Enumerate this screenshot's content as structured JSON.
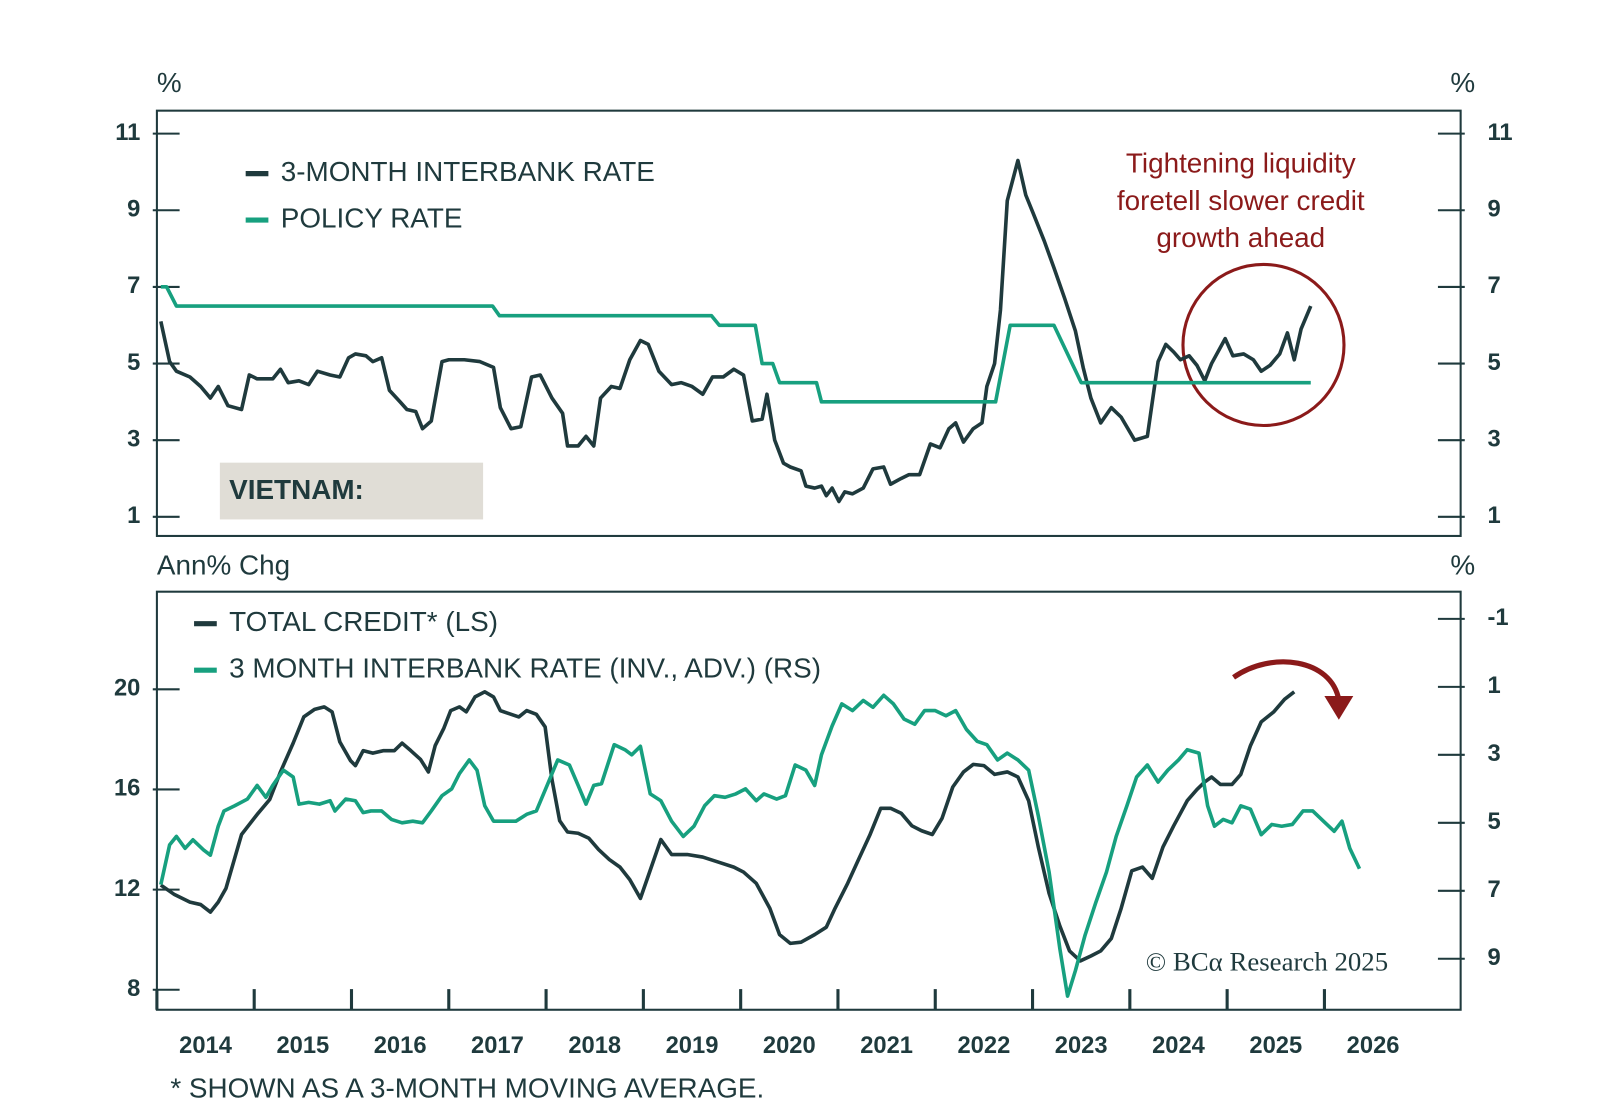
{
  "chart_data": [
    {
      "type": "line",
      "y_label": "%",
      "y2_label": "%",
      "y_mirror": true,
      "panel_label": "VIETNAM:",
      "annotation": [
        "Tightening liquidity",
        "foretell slower credit",
        "growth ahead"
      ],
      "xlim": [
        2014,
        2027.4
      ],
      "ylim": [
        0.5,
        11.6
      ],
      "yticks": [
        1,
        3,
        5,
        7,
        9,
        11
      ],
      "series": [
        {
          "name": "3-MONTH INTERBANK RATE",
          "color": "#1f3a3d",
          "x": [
            2014.04,
            2014.13,
            2014.2,
            2014.34,
            2014.45,
            2014.55,
            2014.63,
            2014.73,
            2014.87,
            2014.95,
            2015.03,
            2015.19,
            2015.27,
            2015.35,
            2015.46,
            2015.56,
            2015.65,
            2015.78,
            2015.88,
            2015.97,
            2016.04,
            2016.15,
            2016.22,
            2016.31,
            2016.39,
            2016.5,
            2016.57,
            2016.66,
            2016.73,
            2016.82,
            2016.93,
            2017.0,
            2017.16,
            2017.32,
            2017.46,
            2017.53,
            2017.64,
            2017.74,
            2017.85,
            2017.94,
            2018.06,
            2018.17,
            2018.22,
            2018.33,
            2018.41,
            2018.49,
            2018.56,
            2018.67,
            2018.76,
            2018.86,
            2018.97,
            2019.05,
            2019.16,
            2019.29,
            2019.39,
            2019.5,
            2019.61,
            2019.71,
            2019.82,
            2019.93,
            2020.03,
            2020.12,
            2020.22,
            2020.27,
            2020.35,
            2020.44,
            2020.51,
            2020.62,
            2020.67,
            2020.76,
            2020.83,
            2020.88,
            2020.94,
            2021.01,
            2021.07,
            2021.15,
            2021.26,
            2021.36,
            2021.47,
            2021.54,
            2021.65,
            2021.73,
            2021.84,
            2021.95,
            2022.05,
            2022.14,
            2022.21,
            2022.29,
            2022.39,
            2022.48,
            2022.53,
            2022.61,
            2022.67,
            2022.74,
            2022.85,
            2022.93,
            2023.01,
            2023.12,
            2023.22,
            2023.33,
            2023.44,
            2023.52,
            2023.6,
            2023.7,
            2023.81,
            2023.91,
            2024.05,
            2024.18,
            2024.29,
            2024.37,
            2024.45,
            2024.52,
            2024.61,
            2024.69,
            2024.77,
            2024.84,
            2024.98,
            2025.06,
            2025.17,
            2025.27,
            2025.35,
            2025.44,
            2025.54,
            2025.62,
            2025.69,
            2025.76,
            2025.86
          ],
          "values": [
            6.1,
            5.05,
            4.8,
            4.65,
            4.4,
            4.1,
            4.4,
            3.9,
            3.8,
            4.7,
            4.6,
            4.6,
            4.85,
            4.5,
            4.55,
            4.45,
            4.8,
            4.7,
            4.65,
            5.15,
            5.25,
            5.2,
            5.05,
            5.15,
            4.3,
            4.0,
            3.8,
            3.75,
            3.3,
            3.5,
            5.05,
            5.1,
            5.1,
            5.05,
            4.9,
            3.85,
            3.3,
            3.35,
            4.65,
            4.7,
            4.1,
            3.7,
            2.85,
            2.85,
            3.1,
            2.85,
            4.1,
            4.4,
            4.35,
            5.1,
            5.6,
            5.5,
            4.8,
            4.45,
            4.5,
            4.4,
            4.2,
            4.65,
            4.65,
            4.85,
            4.7,
            3.5,
            3.55,
            4.2,
            3.0,
            2.4,
            2.3,
            2.2,
            1.8,
            1.75,
            1.8,
            1.55,
            1.75,
            1.4,
            1.65,
            1.6,
            1.75,
            2.25,
            2.3,
            1.85,
            2.0,
            2.1,
            2.1,
            2.9,
            2.8,
            3.3,
            3.45,
            2.95,
            3.3,
            3.45,
            4.4,
            5.0,
            6.4,
            9.25,
            10.3,
            9.4,
            8.9,
            8.2,
            7.5,
            6.7,
            5.85,
            4.9,
            4.1,
            3.45,
            3.85,
            3.6,
            3.0,
            3.1,
            5.05,
            5.5,
            5.3,
            5.1,
            5.2,
            4.95,
            4.55,
            5.0,
            5.65,
            5.2,
            5.25,
            5.1,
            4.8,
            4.95,
            5.25,
            5.8,
            5.1,
            5.9,
            6.5
          ]
        },
        {
          "name": "POLICY RATE",
          "color": "#17a07f",
          "x": [
            2014.04,
            2014.1,
            2014.2,
            2017.45,
            2017.52,
            2019.7,
            2019.78,
            2020.15,
            2020.22,
            2020.33,
            2020.4,
            2020.78,
            2020.83,
            2022.62,
            2022.77,
            2023.22,
            2023.5,
            2025.86
          ],
          "values": [
            7.0,
            7.0,
            6.5,
            6.5,
            6.25,
            6.25,
            6.0,
            6.0,
            5.0,
            5.0,
            4.5,
            4.5,
            4.0,
            4.0,
            6.0,
            6.0,
            4.5,
            4.5
          ]
        }
      ]
    },
    {
      "type": "line",
      "y_label": "Ann% Chg",
      "y2_label": "%",
      "source": "© BCα Research 2025",
      "footnote": "* SHOWN AS A 3-MONTH MOVING AVERAGE.",
      "xlim": [
        2014,
        2027.4
      ],
      "xticks": [
        {
          "value": 2014,
          "label": "2014"
        },
        {
          "value": 2015,
          "label": "2015"
        },
        {
          "value": 2016,
          "label": "2016"
        },
        {
          "value": 2017,
          "label": "2017"
        },
        {
          "value": 2018,
          "label": "2018"
        },
        {
          "value": 2019,
          "label": "2019"
        },
        {
          "value": 2020,
          "label": "2020"
        },
        {
          "value": 2021,
          "label": "2021"
        },
        {
          "value": 2022,
          "label": "2022"
        },
        {
          "value": 2023,
          "label": "2023"
        },
        {
          "value": 2024,
          "label": "2024"
        },
        {
          "value": 2025,
          "label": "2025"
        },
        {
          "value": 2026,
          "label": "2026"
        }
      ],
      "ylim": [
        7.2,
        23.9
      ],
      "yticks": [
        8,
        12,
        16,
        20
      ],
      "y2lim": [
        -1.8,
        10.5
      ],
      "y2ticks": [
        -1,
        1,
        3,
        5,
        7,
        9
      ],
      "y2_inverted": true,
      "series": [
        {
          "name": "TOTAL CREDIT* (LS)",
          "color": "#1f3a3d",
          "x": [
            2014.04,
            2014.18,
            2014.34,
            2014.45,
            2014.55,
            2014.63,
            2014.71,
            2014.87,
            2015.03,
            2015.16,
            2015.27,
            2015.4,
            2015.51,
            2015.62,
            2015.72,
            2015.8,
            2015.88,
            2015.99,
            2016.04,
            2016.12,
            2016.22,
            2016.33,
            2016.44,
            2016.52,
            2016.61,
            2016.71,
            2016.79,
            2016.86,
            2016.95,
            2017.02,
            2017.11,
            2017.18,
            2017.27,
            2017.37,
            2017.46,
            2017.53,
            2017.64,
            2017.72,
            2017.8,
            2017.9,
            2017.99,
            2018.06,
            2018.14,
            2018.22,
            2018.33,
            2018.44,
            2018.54,
            2018.65,
            2018.76,
            2018.86,
            2018.97,
            2019.05,
            2019.18,
            2019.29,
            2019.45,
            2019.61,
            2019.77,
            2019.93,
            2020.03,
            2020.16,
            2020.3,
            2020.4,
            2020.51,
            2020.62,
            2020.76,
            2020.88,
            2020.97,
            2021.1,
            2021.2,
            2021.33,
            2021.44,
            2021.54,
            2021.65,
            2021.76,
            2021.86,
            2021.97,
            2022.07,
            2022.18,
            2022.29,
            2022.39,
            2022.5,
            2022.61,
            2022.74,
            2022.85,
            2022.96,
            2023.06,
            2023.17,
            2023.28,
            2023.38,
            2023.49,
            2023.6,
            2023.7,
            2023.81,
            2023.91,
            2024.02,
            2024.13,
            2024.23,
            2024.34,
            2024.45,
            2024.59,
            2024.69,
            2024.77,
            2024.84,
            2024.93,
            2025.05,
            2025.14,
            2025.24,
            2025.35,
            2025.48,
            2025.59,
            2025.69
          ],
          "values": [
            12.18,
            11.8,
            11.5,
            11.4,
            11.1,
            11.5,
            12.05,
            14.2,
            15.0,
            15.6,
            16.7,
            17.85,
            18.9,
            19.2,
            19.3,
            19.1,
            17.9,
            17.15,
            16.95,
            17.55,
            17.45,
            17.55,
            17.55,
            17.85,
            17.55,
            17.2,
            16.7,
            17.75,
            18.45,
            19.15,
            19.3,
            19.1,
            19.7,
            19.9,
            19.7,
            19.15,
            19.0,
            18.9,
            19.15,
            19.0,
            18.5,
            16.4,
            14.75,
            14.3,
            14.25,
            14.05,
            13.6,
            13.2,
            12.9,
            12.4,
            11.65,
            12.55,
            14.0,
            13.4,
            13.4,
            13.3,
            13.1,
            12.9,
            12.7,
            12.25,
            11.25,
            10.2,
            9.85,
            9.9,
            10.2,
            10.5,
            11.25,
            12.25,
            13.1,
            14.2,
            15.25,
            15.25,
            15.05,
            14.55,
            14.35,
            14.2,
            14.85,
            16.1,
            16.7,
            17.0,
            16.95,
            16.6,
            16.7,
            16.5,
            15.55,
            13.7,
            11.85,
            10.55,
            9.55,
            9.15,
            9.35,
            9.55,
            10.05,
            11.25,
            12.75,
            12.9,
            12.45,
            13.7,
            14.55,
            15.55,
            16.0,
            16.3,
            16.5,
            16.2,
            16.2,
            16.6,
            17.75,
            18.7,
            19.1,
            19.6,
            19.9
          ]
        },
        {
          "name": "3 MONTH INTERBANK RATE  (INV., ADV.) (RS)",
          "color": "#17a07f",
          "axis": "y2",
          "x": [
            2014.04,
            2014.13,
            2014.2,
            2014.29,
            2014.37,
            2014.48,
            2014.55,
            2014.63,
            2014.69,
            2014.8,
            2014.93,
            2015.03,
            2015.12,
            2015.19,
            2015.3,
            2015.4,
            2015.46,
            2015.56,
            2015.67,
            2015.78,
            2015.83,
            2015.94,
            2016.04,
            2016.12,
            2016.2,
            2016.31,
            2016.41,
            2016.52,
            2016.63,
            2016.73,
            2016.82,
            2016.93,
            2017.03,
            2017.11,
            2017.21,
            2017.29,
            2017.37,
            2017.46,
            2017.56,
            2017.69,
            2017.8,
            2017.9,
            2018.01,
            2018.12,
            2018.24,
            2018.33,
            2018.41,
            2018.49,
            2018.57,
            2018.7,
            2018.81,
            2018.88,
            2018.97,
            2019.07,
            2019.18,
            2019.29,
            2019.41,
            2019.52,
            2019.63,
            2019.73,
            2019.84,
            2019.95,
            2020.05,
            2020.16,
            2020.24,
            2020.37,
            2020.46,
            2020.56,
            2020.67,
            2020.76,
            2020.83,
            2020.94,
            2021.04,
            2021.15,
            2021.26,
            2021.36,
            2021.47,
            2021.57,
            2021.68,
            2021.79,
            2021.89,
            2022.0,
            2022.11,
            2022.21,
            2022.32,
            2022.43,
            2022.53,
            2022.64,
            2022.74,
            2022.85,
            2022.96,
            2023.06,
            2023.17,
            2023.28,
            2023.36,
            2023.44,
            2023.54,
            2023.65,
            2023.76,
            2023.86,
            2023.97,
            2024.07,
            2024.18,
            2024.29,
            2024.39,
            2024.5,
            2024.59,
            2024.71,
            2024.8,
            2024.87,
            2024.96,
            2025.05,
            2025.14,
            2025.24,
            2025.35,
            2025.46,
            2025.56,
            2025.67,
            2025.78,
            2025.88,
            2025.99,
            2026.1,
            2026.18,
            2026.26,
            2026.36
          ],
          "values": [
            6.82,
            5.65,
            5.4,
            5.75,
            5.5,
            5.8,
            5.95,
            5.1,
            4.65,
            4.5,
            4.3,
            3.9,
            4.25,
            3.9,
            3.45,
            3.65,
            4.45,
            4.4,
            4.45,
            4.35,
            4.65,
            4.3,
            4.35,
            4.7,
            4.65,
            4.65,
            4.9,
            5.0,
            4.95,
            5.0,
            4.65,
            4.2,
            4.0,
            3.55,
            3.15,
            3.45,
            4.5,
            4.95,
            4.95,
            4.95,
            4.75,
            4.65,
            3.9,
            3.15,
            3.3,
            3.9,
            4.45,
            3.9,
            3.85,
            2.7,
            2.85,
            3.0,
            2.75,
            4.15,
            4.35,
            4.95,
            5.4,
            5.1,
            4.5,
            4.2,
            4.25,
            4.15,
            4.0,
            4.35,
            4.15,
            4.3,
            4.2,
            3.3,
            3.45,
            3.9,
            3.0,
            2.15,
            1.5,
            1.7,
            1.4,
            1.6,
            1.25,
            1.5,
            1.95,
            2.1,
            1.7,
            1.7,
            1.85,
            1.7,
            2.25,
            2.6,
            2.7,
            3.15,
            2.95,
            3.15,
            3.45,
            4.8,
            6.45,
            8.7,
            10.1,
            9.35,
            8.3,
            7.35,
            6.45,
            5.4,
            4.5,
            3.65,
            3.3,
            3.8,
            3.45,
            3.15,
            2.85,
            2.95,
            4.5,
            5.1,
            4.9,
            5.0,
            4.5,
            4.6,
            5.35,
            5.05,
            5.1,
            5.05,
            4.65,
            4.65,
            4.95,
            5.25,
            4.95,
            5.75,
            6.35
          ]
        }
      ]
    }
  ]
}
